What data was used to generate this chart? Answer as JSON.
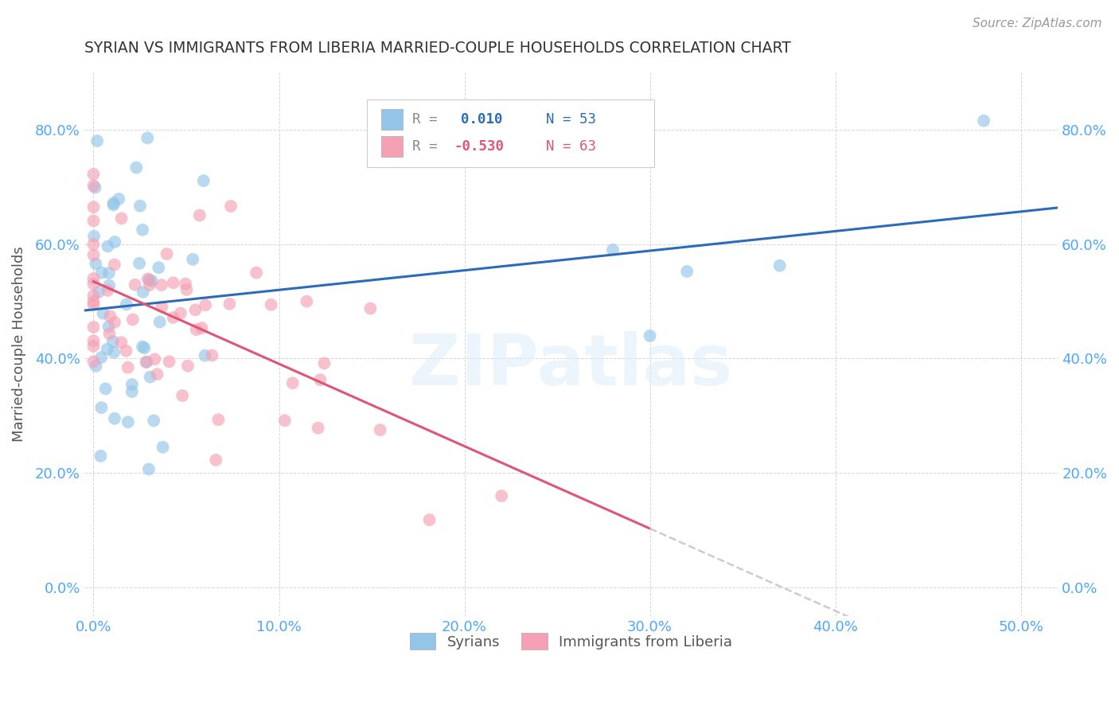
{
  "title": "SYRIAN VS IMMIGRANTS FROM LIBERIA MARRIED-COUPLE HOUSEHOLDS CORRELATION CHART",
  "source": "Source: ZipAtlas.com",
  "xlabel_ticks": [
    "0.0%",
    "10.0%",
    "20.0%",
    "30.0%",
    "40.0%",
    "50.0%"
  ],
  "xlabel_tick_vals": [
    0.0,
    0.1,
    0.2,
    0.3,
    0.4,
    0.5
  ],
  "ylabel_ticks": [
    "0.0%",
    "20.0%",
    "40.0%",
    "60.0%",
    "80.0%"
  ],
  "ylabel_tick_vals": [
    0.0,
    0.2,
    0.4,
    0.6,
    0.8
  ],
  "xlim": [
    -0.005,
    0.52
  ],
  "ylim": [
    -0.05,
    0.9
  ],
  "watermark": "ZIPatlas",
  "syrians_color": "#92c5e8",
  "liberia_color": "#f5a0b5",
  "trendline_syrian_color": "#2b6cb8",
  "trendline_liberia_color": "#e05575",
  "trendline_extend_color": "#cccccc",
  "R_syrian": 0.01,
  "N_syrian": 53,
  "R_liberia": -0.53,
  "N_liberia": 63,
  "background_color": "#ffffff",
  "grid_color": "#cccccc",
  "title_color": "#333333",
  "axis_label_color": "#555555",
  "tick_label_color": "#4da6ff",
  "ylabel": "Married-couple Households",
  "legend_r1": "R =  0.010",
  "legend_n1": "N = 53",
  "legend_r2": "R = -0.530",
  "legend_n2": "N = 63"
}
